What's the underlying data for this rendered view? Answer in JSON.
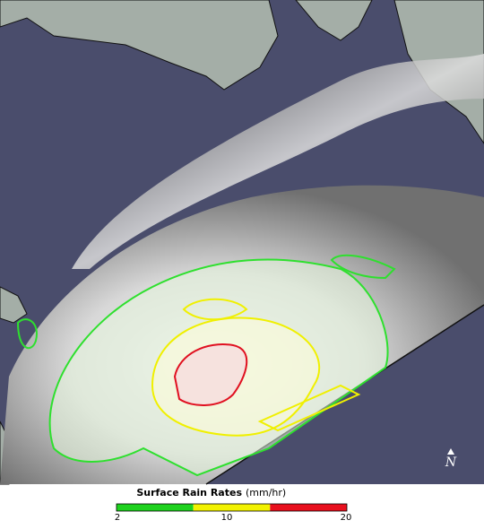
{
  "legend": {
    "title": "Surface Rain Rates",
    "unit": "(mm/hr)",
    "ticks": [
      "2",
      "10",
      "20"
    ],
    "colors": [
      "#1fd21f",
      "#f2f200",
      "#e8101e"
    ]
  },
  "compass": "N"
}
